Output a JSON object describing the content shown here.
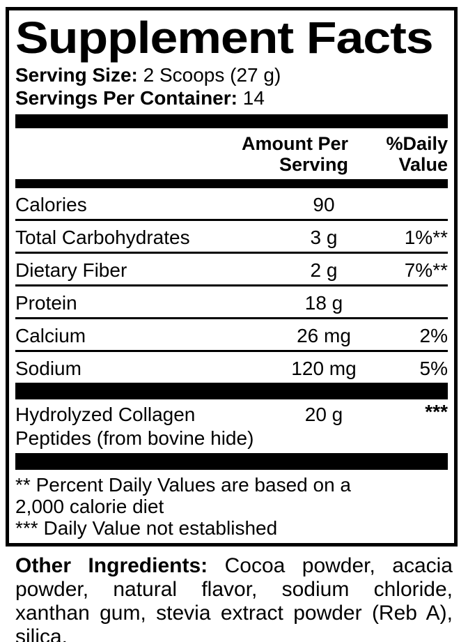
{
  "colors": {
    "ink": "#000000",
    "paper": "#ffffff"
  },
  "panel": {
    "title": "Supplement Facts",
    "serving_size_label": "Serving Size:",
    "serving_size_value": " 2 Scoops (27 g)",
    "servings_per_container_label": "Servings Per Container:",
    "servings_per_container_value": " 14",
    "header": {
      "amount_line1": "Amount Per",
      "amount_line2": "Serving",
      "dv_line1": "%Daily",
      "dv_line2": "Value"
    },
    "rows": [
      {
        "name": "Calories",
        "amount": "90",
        "dv": ""
      },
      {
        "name": "Total Carbohydrates",
        "amount": "3 g",
        "dv": "1%**"
      },
      {
        "name": "Dietary Fiber",
        "amount": "2 g",
        "dv": "7%**"
      },
      {
        "name": "Protein",
        "amount": "18 g",
        "dv": ""
      },
      {
        "name": "Calcium",
        "amount": "26 mg",
        "dv": "2%"
      },
      {
        "name": "Sodium",
        "amount": "120 mg",
        "dv": "5%"
      }
    ],
    "collagen_row": {
      "name_line1": "Hydrolyzed Collagen",
      "name_line2": "Peptides (from bovine hide)",
      "amount": "20 g",
      "dv": "***"
    },
    "footnote_lines": [
      "** Percent Daily Values are based on a",
      "2,000 calorie diet",
      "*** Daily Value not established"
    ]
  },
  "other_ingredients": {
    "label": "Other Ingredients:",
    "text": " Cocoa powder, acacia powder, natural flavor, sodium chloride, xanthan gum, stevia extract powder (Reb A), silica."
  }
}
